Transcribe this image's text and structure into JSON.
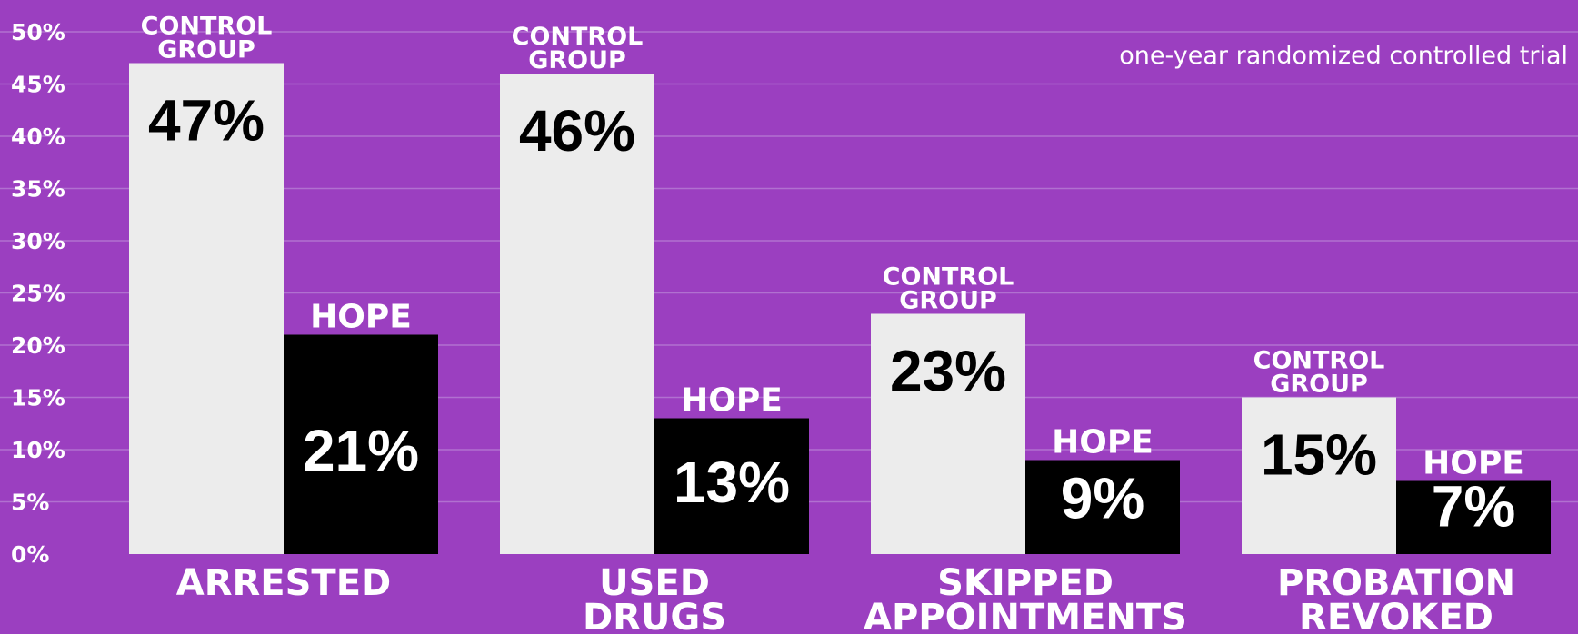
{
  "subtitle": "one-year randomized controlled trial",
  "colors": {
    "background": "#9b3fc0",
    "control": "#ececec",
    "hope": "#000000",
    "gridline": "#b170d0",
    "text": "#ffffff"
  },
  "chart_data": {
    "type": "bar",
    "subtitle": "one-year randomized controlled trial",
    "xlabel": "",
    "ylabel": "",
    "ylim": [
      0,
      50
    ],
    "grid": true,
    "legend": "none",
    "y_ticks": [
      "0%",
      "5%",
      "10%",
      "15%",
      "20%",
      "25%",
      "30%",
      "35%",
      "40%",
      "45%",
      "50%"
    ],
    "categories": [
      {
        "lines": [
          "ARRESTED"
        ]
      },
      {
        "lines": [
          "USED",
          "DRUGS"
        ]
      },
      {
        "lines": [
          "SKIPPED",
          "APPOINTMENTS"
        ]
      },
      {
        "lines": [
          "PROBATION",
          "REVOKED"
        ]
      }
    ],
    "series": [
      {
        "label_lines": [
          "CONTROL",
          "GROUP"
        ],
        "values": [
          47,
          46,
          23,
          15
        ],
        "value_labels": [
          "47%",
          "46%",
          "23%",
          "15%"
        ]
      },
      {
        "label_lines": [
          "HOPE"
        ],
        "values": [
          21,
          13,
          9,
          7
        ],
        "value_labels": [
          "21%",
          "13%",
          "9%",
          "7%"
        ]
      }
    ]
  }
}
